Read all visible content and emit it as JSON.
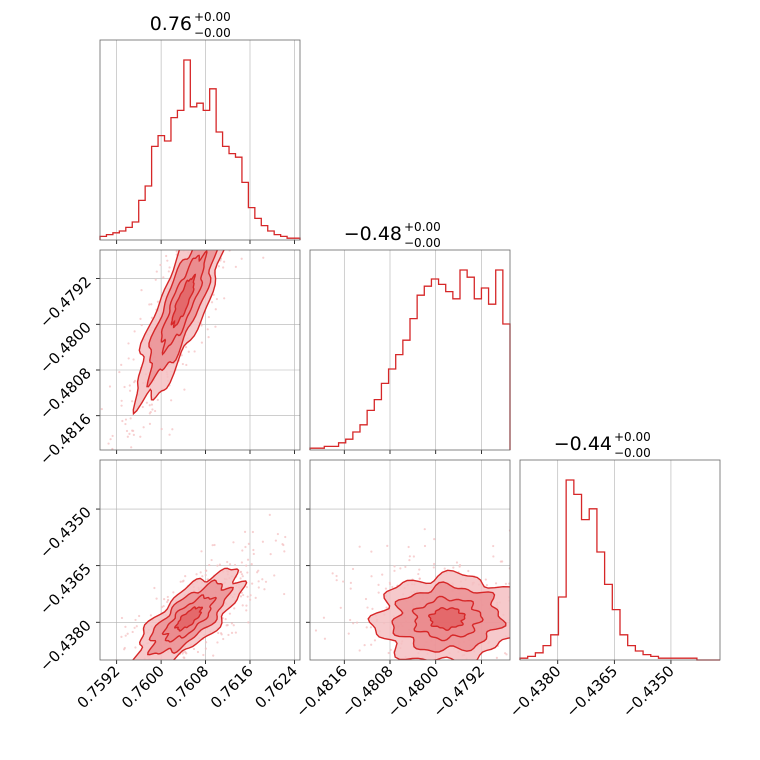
{
  "colors": {
    "series": "#d62728",
    "series_light": "#f4c0c2",
    "series_mid": "#ea8a8d",
    "grid": "#b0b0b0",
    "frame": "#666666"
  },
  "chart_data": {
    "type": "corner",
    "parameters": [
      {
        "key": "p0",
        "range": [
          0.7589,
          0.7625
        ],
        "ticks": [
          0.7592,
          0.76,
          0.7608,
          0.7616,
          0.7624
        ],
        "tick_labels": [
          "0.7592",
          "0.7600",
          "0.7608",
          "0.7616",
          "0.7624"
        ],
        "title": {
          "main": "0.76",
          "sup": "+0.00",
          "sub": "−0.00"
        }
      },
      {
        "key": "p1",
        "range": [
          -0.4822,
          -0.4787
        ],
        "ticks": [
          -0.4816,
          -0.4808,
          -0.48,
          -0.4792
        ],
        "tick_labels": [
          "−0.4816",
          "−0.4808",
          "−0.4800",
          "−0.4792"
        ],
        "title": {
          "main": "−0.48",
          "sup": "+0.00",
          "sub": "−0.00"
        }
      },
      {
        "key": "p2",
        "range": [
          -0.439,
          -0.4337
        ],
        "ticks": [
          -0.438,
          -0.4365,
          -0.435
        ],
        "tick_labels": [
          "−0.4380",
          "−0.4365",
          "−0.4350"
        ],
        "title": {
          "main": "−0.44",
          "sup": "+0.00",
          "sub": "−0.00"
        }
      }
    ],
    "histograms": [
      {
        "param": 0,
        "heights": [
          2,
          3,
          4,
          5,
          7,
          10,
          22,
          30,
          52,
          58,
          55,
          68,
          72,
          100,
          74,
          76,
          72,
          84,
          60,
          52,
          48,
          46,
          32,
          18,
          12,
          8,
          5,
          3,
          2,
          1,
          1
        ]
      },
      {
        "param": 1,
        "heights": [
          1,
          1,
          2,
          2,
          4,
          6,
          10,
          14,
          22,
          28,
          37,
          45,
          53,
          61,
          73,
          86,
          91,
          95,
          92,
          88,
          84,
          100,
          96,
          84,
          90,
          81,
          100,
          70
        ]
      },
      {
        "param": 2,
        "heights": [
          1,
          2,
          4,
          8,
          14,
          35,
          100,
          92,
          78,
          84,
          60,
          42,
          28,
          14,
          8,
          5,
          3,
          2,
          1,
          1,
          1,
          1,
          1,
          0,
          0,
          0
        ]
      }
    ],
    "pairs": [
      {
        "x_param": 0,
        "y_param": 1,
        "center": [
          0.7604,
          -0.4796
        ],
        "sigma": [
          0.0004,
          0.00085
        ],
        "rho": 0.85,
        "clip_y_max": -0.4787
      },
      {
        "x_param": 0,
        "y_param": 2,
        "center": [
          0.7605,
          -0.4379
        ],
        "sigma": [
          0.00045,
          0.0006
        ],
        "rho": 0.75,
        "clip_y_max": -0.4337
      },
      {
        "x_param": 1,
        "y_param": 2,
        "center": [
          -0.4798,
          -0.4379
        ],
        "sigma": [
          0.0006,
          0.00055
        ],
        "rho": 0.05,
        "clip_x_max": -0.4787
      }
    ],
    "grid": true
  }
}
